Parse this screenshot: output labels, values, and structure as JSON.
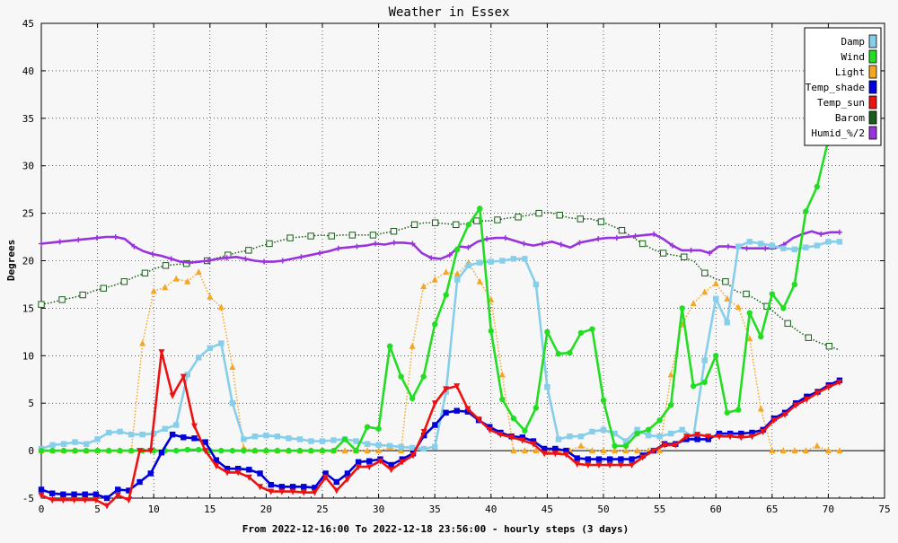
{
  "chart_data": {
    "type": "line",
    "title": "Weather in Essex",
    "xlabel": "From 2022-12-16:00 To 2022-12-18 23:56:00 - hourly steps (3 days)",
    "ylabel": "Degrees",
    "xlim": [
      0,
      75
    ],
    "ylim": [
      -5,
      45
    ],
    "x_ticks": [
      0,
      5,
      10,
      15,
      20,
      25,
      30,
      35,
      40,
      45,
      50,
      55,
      60,
      65,
      70,
      75
    ],
    "y_ticks": [
      -5,
      0,
      5,
      10,
      15,
      20,
      25,
      30,
      35,
      40,
      45
    ],
    "grid": true,
    "legend_position": "top-right",
    "series": [
      {
        "name": "Damp",
        "color": "#87ceeb",
        "style": "solid",
        "marker": "square",
        "values": [
          0.2,
          0.6,
          0.7,
          0.9,
          0.7,
          1.2,
          1.9,
          2.0,
          1.7,
          1.7,
          1.8,
          2.3,
          2.7,
          8.0,
          9.8,
          10.8,
          11.3,
          5.0,
          1.2,
          1.5,
          1.6,
          1.5,
          1.3,
          1.2,
          1.0,
          1.0,
          1.1,
          1.2,
          1.0,
          0.7,
          0.6,
          0.5,
          0.4,
          0.3,
          0.2,
          0.4,
          6.2,
          18.0,
          19.5,
          19.8,
          19.9,
          20.0,
          20.2,
          20.2,
          17.5,
          6.7,
          1.2,
          1.5,
          1.5,
          2.0,
          2.2,
          1.8,
          1.0,
          2.2,
          1.6,
          1.5,
          1.8,
          2.2,
          1.4,
          9.5,
          16.0,
          13.5,
          21.5,
          22.0,
          21.8,
          21.6,
          21.3,
          21.2,
          21.4,
          21.6,
          22.0,
          22.0
        ]
      },
      {
        "name": "Wind",
        "color": "#22dd22",
        "style": "solid",
        "marker": "circle",
        "values": [
          0,
          0,
          0,
          0,
          0,
          0,
          0,
          0,
          0,
          0,
          0,
          0,
          0,
          0.1,
          0.1,
          0,
          0,
          0,
          0,
          0,
          0,
          0,
          0,
          0,
          0,
          0,
          0,
          1.2,
          0,
          2.5,
          2.3,
          11.0,
          7.8,
          5.5,
          7.8,
          13.3,
          16.4,
          21.2,
          23.8,
          25.5,
          12.6,
          5.4,
          3.4,
          2.1,
          4.5,
          12.5,
          10.2,
          10.3,
          12.4,
          12.8,
          5.3,
          0.5,
          0.5,
          1.8,
          2.2,
          3.2,
          4.8,
          15.0,
          6.8,
          7.2,
          10.0,
          4.0,
          4.3,
          14.5,
          12.0,
          16.5,
          15.0,
          17.5,
          25.2,
          27.8,
          32.7,
          null
        ]
      },
      {
        "name": "Light",
        "color": "#f4a622",
        "style": "dotted",
        "marker": "triangle-up",
        "values": [
          0,
          0,
          0,
          0,
          0,
          0,
          0,
          0,
          0,
          11.3,
          16.8,
          17.2,
          18.1,
          17.8,
          18.8,
          16.2,
          15.1,
          8.8,
          0.3,
          0,
          0,
          0,
          0,
          0,
          0,
          0,
          0,
          0,
          0,
          0,
          0,
          0.3,
          0,
          11.0,
          17.3,
          18.0,
          18.8,
          18.6,
          19.8,
          17.8,
          15.9,
          8.0,
          0,
          0,
          0,
          0,
          0,
          0,
          0.5,
          0,
          0,
          0,
          0,
          0,
          0,
          0,
          8.0,
          13.3,
          15.5,
          16.7,
          17.6,
          16.0,
          15.1,
          11.8,
          4.4,
          0,
          0,
          0,
          0,
          0.5,
          0,
          0
        ]
      },
      {
        "name": "Temp_shade",
        "color": "#0000dd",
        "style": "solid",
        "marker": "square",
        "values": [
          -4.1,
          -4.5,
          -4.6,
          -4.6,
          -4.6,
          -4.6,
          -5.0,
          -4.1,
          -4.2,
          -3.3,
          -2.4,
          -0.2,
          1.7,
          1.4,
          1.3,
          0.9,
          -1.0,
          -1.9,
          -1.9,
          -2.0,
          -2.4,
          -3.6,
          -3.8,
          -3.8,
          -3.8,
          -3.9,
          -2.4,
          -3.3,
          -2.4,
          -1.2,
          -1.1,
          -0.9,
          -1.5,
          -0.9,
          -0.3,
          1.6,
          2.7,
          4.0,
          4.2,
          4.1,
          3.2,
          2.5,
          1.9,
          1.5,
          1.4,
          1.0,
          0.2,
          0.2,
          0.0,
          -0.8,
          -0.9,
          -0.9,
          -0.9,
          -0.9,
          -0.9,
          -0.5,
          0.0,
          0.7,
          0.7,
          1.2,
          1.2,
          1.2,
          1.8,
          1.8,
          1.8,
          1.9,
          2.2,
          3.4,
          4.0,
          5.0,
          5.7,
          6.2,
          6.9,
          7.4
        ]
      },
      {
        "name": "Temp_sun",
        "color": "#ee1111",
        "style": "solid",
        "marker": "triangle-down",
        "values": [
          -4.7,
          -5.2,
          -5.2,
          -5.2,
          -5.2,
          -5.2,
          -5.8,
          -4.7,
          -5.2,
          0.0,
          0.0,
          10.4,
          5.8,
          7.8,
          2.6,
          0.0,
          -1.6,
          -2.3,
          -2.3,
          -2.8,
          -3.8,
          -4.3,
          -4.3,
          -4.3,
          -4.4,
          -4.4,
          -2.8,
          -4.2,
          -3.0,
          -1.7,
          -1.7,
          -1.1,
          -2.0,
          -1.2,
          -0.5,
          2.0,
          5.0,
          6.5,
          6.8,
          4.4,
          3.3,
          2.2,
          1.7,
          1.4,
          1.1,
          0.7,
          -0.3,
          -0.3,
          -0.4,
          -1.4,
          -1.5,
          -1.5,
          -1.5,
          -1.5,
          -1.5,
          -0.7,
          0.0,
          0.6,
          0.6,
          1.5,
          1.7,
          1.5,
          1.5,
          1.5,
          1.4,
          1.5,
          2.0,
          3.2,
          3.8,
          4.8,
          5.4,
          6.1,
          6.7,
          7.2
        ]
      },
      {
        "name": "Barom",
        "color": "#1a5c1a",
        "style": "dotted",
        "marker": "open-square",
        "values": [
          15.4,
          15.6,
          15.9,
          16.1,
          16.4,
          16.8,
          17.1,
          17.4,
          17.8,
          18.3,
          18.7,
          19.2,
          19.5,
          19.6,
          19.7,
          19.8,
          20.0,
          20.3,
          20.6,
          20.9,
          21.1,
          21.5,
          21.8,
          22.1,
          22.4,
          22.5,
          22.6,
          22.7,
          22.6,
          22.7,
          22.7,
          22.7,
          22.7,
          22.9,
          23.1,
          23.4,
          23.8,
          24.0,
          24.0,
          23.9,
          23.8,
          23.9,
          24.2,
          24.2,
          24.3,
          24.5,
          24.6,
          24.8,
          25.0,
          25.1,
          24.8,
          24.5,
          24.4,
          24.4,
          24.1,
          23.7,
          23.2,
          22.5,
          21.8,
          21.2,
          20.8,
          20.6,
          20.4,
          19.9,
          18.7,
          18.1,
          17.8,
          16.8,
          16.5,
          15.9,
          15.2,
          14.3,
          13.4,
          12.6,
          11.9,
          11.4,
          11.0,
          10.6
        ]
      },
      {
        "name": "Humid_%/2",
        "color": "#9933dd",
        "style": "solid",
        "marker": "plus",
        "values": [
          21.8,
          21.9,
          22.0,
          22.1,
          22.2,
          22.3,
          22.4,
          22.5,
          22.5,
          22.3,
          21.5,
          21.0,
          20.7,
          20.5,
          20.2,
          19.9,
          19.8,
          19.9,
          20.0,
          20.2,
          20.3,
          20.4,
          20.2,
          20.0,
          19.9,
          19.9,
          20.0,
          20.2,
          20.4,
          20.6,
          20.8,
          21.0,
          21.3,
          21.4,
          21.5,
          21.6,
          21.8,
          21.7,
          21.9,
          21.9,
          21.8,
          20.8,
          20.3,
          20.2,
          20.6,
          21.5,
          21.4,
          22.0,
          22.3,
          22.4,
          22.4,
          22.1,
          21.8,
          21.6,
          21.8,
          22.0,
          21.7,
          21.4,
          21.9,
          22.1,
          22.3,
          22.4,
          22.4,
          22.5,
          22.6,
          22.7,
          22.8,
          22.3,
          21.6,
          21.1,
          21.1,
          21.1,
          20.8,
          21.5,
          21.5,
          21.4,
          21.3,
          21.3,
          21.3,
          21.3,
          21.7,
          22.4,
          22.8,
          23.1,
          22.8,
          23.0,
          23.0
        ]
      }
    ]
  }
}
